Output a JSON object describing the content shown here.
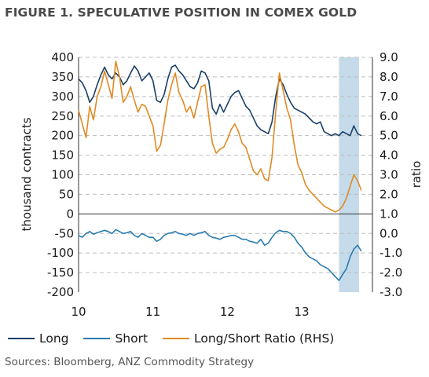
{
  "title": "FIGURE 1. SPECULATIVE POSITION IN COMEX GOLD",
  "source": "Sources: Bloomberg, ANZ Commodity Strategy",
  "chart_data": {
    "type": "line",
    "ylabel_left": "thousand contracts",
    "ylabel_right": "ratio",
    "x_tick_labels": [
      "10",
      "11",
      "12",
      "13"
    ],
    "x_tick_positions": [
      2010,
      2011,
      2012,
      2013
    ],
    "xlim": [
      2010.0,
      2013.95
    ],
    "ylim_left": [
      -200,
      400
    ],
    "ylim_right": [
      -3.0,
      9.0
    ],
    "y_left_ticks": [
      "400",
      "350",
      "300",
      "250",
      "200",
      "150",
      "100",
      "50",
      "0",
      "-50",
      "-100",
      "-150",
      "-200"
    ],
    "y_right_ticks": [
      "9.0",
      "8.0",
      "7.0",
      "6.0",
      "5.0",
      "4.0",
      "3.0",
      "2.0",
      "1.0",
      "0.0",
      "-1.0",
      "-2.0",
      "-3.0"
    ],
    "grid": "horizontal dashed",
    "shaded_period": [
      2013.5,
      2013.77
    ],
    "colors": {
      "long": "#1b3f66",
      "short": "#2a7cb0",
      "ratio": "#e08a24",
      "shade": "#c5dbea",
      "grid": "#bdbdbd"
    },
    "series": [
      {
        "name": "Long",
        "axis": "left",
        "x": [
          2010.0,
          2010.05,
          2010.1,
          2010.15,
          2010.2,
          2010.25,
          2010.3,
          2010.35,
          2010.4,
          2010.45,
          2010.5,
          2010.55,
          2010.6,
          2010.65,
          2010.7,
          2010.75,
          2010.8,
          2010.85,
          2010.9,
          2010.95,
          2011.0,
          2011.05,
          2011.1,
          2011.15,
          2011.2,
          2011.25,
          2011.3,
          2011.35,
          2011.4,
          2011.45,
          2011.5,
          2011.55,
          2011.6,
          2011.65,
          2011.7,
          2011.75,
          2011.8,
          2011.85,
          2011.9,
          2011.95,
          2012.0,
          2012.05,
          2012.1,
          2012.15,
          2012.2,
          2012.25,
          2012.3,
          2012.35,
          2012.4,
          2012.45,
          2012.5,
          2012.55,
          2012.6,
          2012.65,
          2012.7,
          2012.75,
          2012.8,
          2012.85,
          2012.9,
          2012.95,
          2013.0,
          2013.05,
          2013.1,
          2013.15,
          2013.2,
          2013.25,
          2013.3,
          2013.35,
          2013.4,
          2013.45,
          2013.5,
          2013.55,
          2013.6,
          2013.65,
          2013.7,
          2013.75,
          2013.8
        ],
        "values": [
          345,
          335,
          315,
          285,
          300,
          330,
          355,
          375,
          355,
          345,
          360,
          350,
          330,
          340,
          360,
          378,
          365,
          340,
          350,
          360,
          340,
          290,
          285,
          305,
          345,
          375,
          380,
          365,
          355,
          340,
          325,
          320,
          335,
          365,
          360,
          340,
          270,
          255,
          280,
          260,
          280,
          300,
          310,
          315,
          295,
          275,
          265,
          245,
          225,
          215,
          210,
          205,
          235,
          300,
          345,
          330,
          305,
          285,
          270,
          265,
          260,
          255,
          245,
          235,
          230,
          235,
          210,
          205,
          200,
          205,
          200,
          210,
          205,
          200,
          225,
          205,
          200
        ]
      },
      {
        "name": "Short",
        "axis": "left",
        "x": [
          2010.0,
          2010.05,
          2010.1,
          2010.15,
          2010.2,
          2010.25,
          2010.3,
          2010.35,
          2010.4,
          2010.45,
          2010.5,
          2010.55,
          2010.6,
          2010.65,
          2010.7,
          2010.75,
          2010.8,
          2010.85,
          2010.9,
          2010.95,
          2011.0,
          2011.05,
          2011.1,
          2011.15,
          2011.2,
          2011.25,
          2011.3,
          2011.35,
          2011.4,
          2011.45,
          2011.5,
          2011.55,
          2011.6,
          2011.65,
          2011.7,
          2011.75,
          2011.8,
          2011.85,
          2011.9,
          2011.95,
          2012.0,
          2012.05,
          2012.1,
          2012.15,
          2012.2,
          2012.25,
          2012.3,
          2012.35,
          2012.4,
          2012.45,
          2012.5,
          2012.55,
          2012.6,
          2012.65,
          2012.7,
          2012.75,
          2012.8,
          2012.85,
          2012.9,
          2012.95,
          2013.0,
          2013.05,
          2013.1,
          2013.15,
          2013.2,
          2013.25,
          2013.3,
          2013.35,
          2013.4,
          2013.45,
          2013.5,
          2013.55,
          2013.6,
          2013.65,
          2013.7,
          2013.75,
          2013.8
        ],
        "values": [
          -55,
          -60,
          -50,
          -45,
          -52,
          -48,
          -45,
          -42,
          -45,
          -50,
          -40,
          -45,
          -50,
          -48,
          -45,
          -55,
          -60,
          -50,
          -55,
          -60,
          -60,
          -70,
          -65,
          -55,
          -50,
          -48,
          -45,
          -50,
          -52,
          -55,
          -50,
          -55,
          -50,
          -48,
          -45,
          -55,
          -60,
          -62,
          -65,
          -60,
          -58,
          -55,
          -55,
          -60,
          -65,
          -65,
          -70,
          -72,
          -75,
          -65,
          -80,
          -75,
          -60,
          -48,
          -42,
          -45,
          -45,
          -50,
          -60,
          -75,
          -85,
          -100,
          -110,
          -115,
          -120,
          -130,
          -135,
          -140,
          -150,
          -160,
          -170,
          -155,
          -140,
          -110,
          -90,
          -80,
          -95
        ]
      },
      {
        "name": "Long/Short Ratio (RHS)",
        "axis": "right",
        "x": [
          2010.0,
          2010.05,
          2010.1,
          2010.15,
          2010.2,
          2010.25,
          2010.3,
          2010.35,
          2010.4,
          2010.45,
          2010.5,
          2010.55,
          2010.6,
          2010.65,
          2010.7,
          2010.75,
          2010.8,
          2010.85,
          2010.9,
          2010.95,
          2011.0,
          2011.05,
          2011.1,
          2011.15,
          2011.2,
          2011.25,
          2011.3,
          2011.35,
          2011.4,
          2011.45,
          2011.5,
          2011.55,
          2011.6,
          2011.65,
          2011.7,
          2011.75,
          2011.8,
          2011.85,
          2011.9,
          2011.95,
          2012.0,
          2012.05,
          2012.1,
          2012.15,
          2012.2,
          2012.25,
          2012.3,
          2012.35,
          2012.4,
          2012.45,
          2012.5,
          2012.55,
          2012.6,
          2012.65,
          2012.7,
          2012.75,
          2012.8,
          2012.85,
          2012.9,
          2012.95,
          2013.0,
          2013.05,
          2013.1,
          2013.15,
          2013.2,
          2013.25,
          2013.3,
          2013.35,
          2013.4,
          2013.45,
          2013.5,
          2013.55,
          2013.6,
          2013.65,
          2013.7,
          2013.75,
          2013.8
        ],
        "values": [
          6.3,
          5.6,
          4.9,
          6.5,
          5.8,
          7.0,
          7.5,
          8.3,
          7.6,
          6.9,
          8.8,
          8.0,
          6.7,
          7.0,
          7.5,
          6.8,
          6.2,
          6.6,
          6.5,
          6.0,
          5.5,
          4.2,
          4.5,
          5.6,
          6.8,
          7.6,
          8.2,
          7.2,
          6.8,
          6.2,
          6.5,
          5.9,
          6.7,
          7.5,
          7.6,
          6.0,
          4.6,
          4.1,
          4.3,
          4.4,
          4.8,
          5.3,
          5.6,
          5.2,
          4.6,
          4.4,
          3.8,
          3.2,
          3.0,
          3.3,
          2.8,
          2.7,
          3.9,
          6.2,
          8.2,
          7.3,
          6.4,
          5.8,
          4.5,
          3.5,
          3.1,
          2.5,
          2.2,
          2.0,
          1.8,
          1.6,
          1.4,
          1.3,
          1.2,
          1.1,
          1.2,
          1.4,
          1.8,
          2.4,
          3.0,
          2.7,
          2.2
        ]
      }
    ]
  }
}
